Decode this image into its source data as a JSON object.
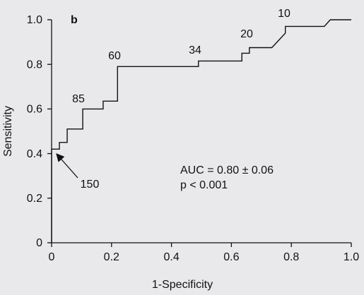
{
  "chart_data": {
    "type": "line",
    "panel_label": "b",
    "xlabel": "1-Specificity",
    "ylabel": "Sensitivity",
    "x": [
      0,
      0,
      0.026,
      0.026,
      0.052,
      0.052,
      0.104,
      0.104,
      0.172,
      0.172,
      0.22,
      0.22,
      0.49,
      0.49,
      0.635,
      0.635,
      0.66,
      0.66,
      0.735,
      0.78,
      0.78,
      0.91,
      0.93,
      1.0
    ],
    "series": [
      {
        "color": "#111111",
        "values": [
          0,
          0.42,
          0.42,
          0.45,
          0.45,
          0.51,
          0.51,
          0.6,
          0.6,
          0.635,
          0.635,
          0.79,
          0.79,
          0.815,
          0.815,
          0.85,
          0.85,
          0.875,
          0.875,
          0.94,
          0.97,
          0.97,
          1.0,
          1.0
        ]
      }
    ],
    "xlim": [
      0,
      1.0
    ],
    "ylim": [
      0,
      1.0
    ],
    "xticks": [
      0,
      0.2,
      0.4,
      0.6,
      0.8,
      {
        "value": 1,
        "label": "1.0"
      }
    ],
    "yticks": [
      0,
      0.2,
      0.4,
      0.6,
      0.8,
      {
        "value": 1,
        "label": "1.0"
      }
    ],
    "grid": false,
    "annotations": [
      "85",
      "60",
      "34",
      "20",
      "10",
      "150",
      "AUC = 0.80 ± 0.06",
      "p < 0.001"
    ]
  }
}
